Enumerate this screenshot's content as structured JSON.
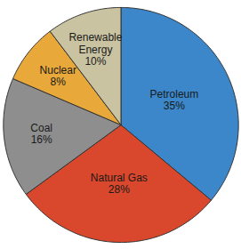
{
  "chart_data": {
    "type": "pie",
    "categories": [
      "Petroleum",
      "Natural Gas",
      "Coal",
      "Nuclear",
      "Renewable Energy"
    ],
    "values": [
      35,
      28,
      16,
      8,
      10
    ],
    "value_labels": [
      "35%",
      "28%",
      "16%",
      "8%",
      "10%"
    ],
    "colors": [
      "#3b87c9",
      "#d9472c",
      "#8e8e8e",
      "#e8a83a",
      "#c9c3a2"
    ],
    "data_labels": true
  }
}
